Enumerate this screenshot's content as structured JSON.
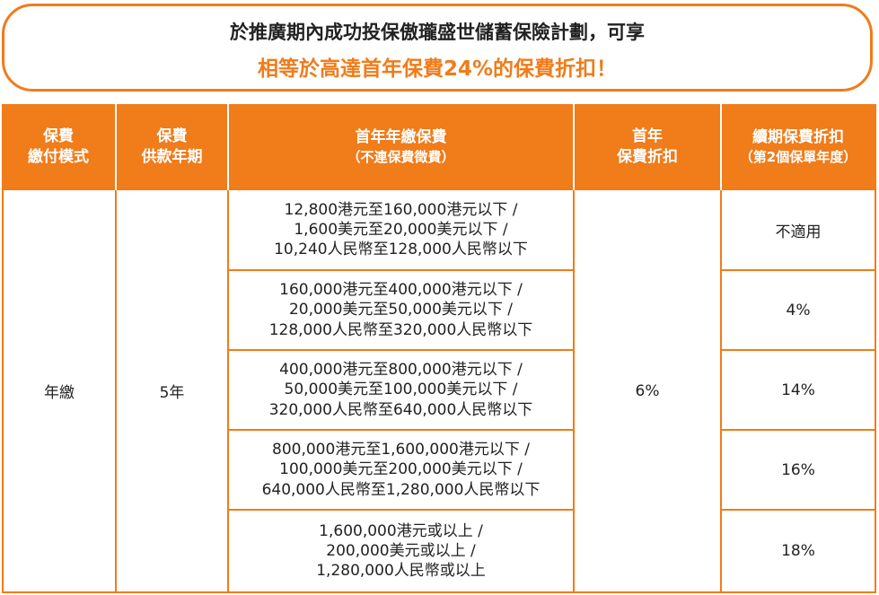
{
  "banner": {
    "line1": "於推廣期內成功投保傲瓏盛世儲蓄保險計劃，可享",
    "line2": "相等於高達首年保費24%的保費折扣！"
  },
  "table": {
    "headers": {
      "mode": [
        "保費",
        "繳付模式"
      ],
      "period": [
        "保費",
        "供款年期"
      ],
      "first_year_premium": [
        "首年年繳保費",
        "（不連保費徵費）"
      ],
      "first_year_discount": [
        "首年",
        "保費折扣"
      ],
      "renewal_discount": [
        "續期保費折扣",
        "（第2個保單年度）"
      ]
    },
    "mode": "年繳",
    "period": "5年",
    "first_year_discount": "6%",
    "rows": [
      {
        "range": [
          "12,800港元至160,000港元以下 /",
          "1,600美元至20,000美元以下 /",
          "10,240人民幣至128,000人民幣以下"
        ],
        "renewal": "不適用"
      },
      {
        "range": [
          "160,000港元至400,000港元以下 /",
          "20,000美元至50,000美元以下 /",
          "128,000人民幣至320,000人民幣以下"
        ],
        "renewal": "4%"
      },
      {
        "range": [
          "400,000港元至800,000港元以下 /",
          "50,000美元至100,000美元以下 /",
          "320,000人民幣至640,000人民幣以下"
        ],
        "renewal": "14%"
      },
      {
        "range": [
          "800,000港元至1,600,000港元以下 /",
          "100,000美元至200,000美元以下 /",
          "640,000人民幣至1,280,000人民幣以下"
        ],
        "renewal": "16%"
      },
      {
        "range": [
          "1,600,000港元或以上 /",
          "200,000美元或以上 /",
          "1,280,000人民幣或以上"
        ],
        "renewal": "18%"
      }
    ]
  },
  "colors": {
    "accent": "#f07c1a"
  }
}
